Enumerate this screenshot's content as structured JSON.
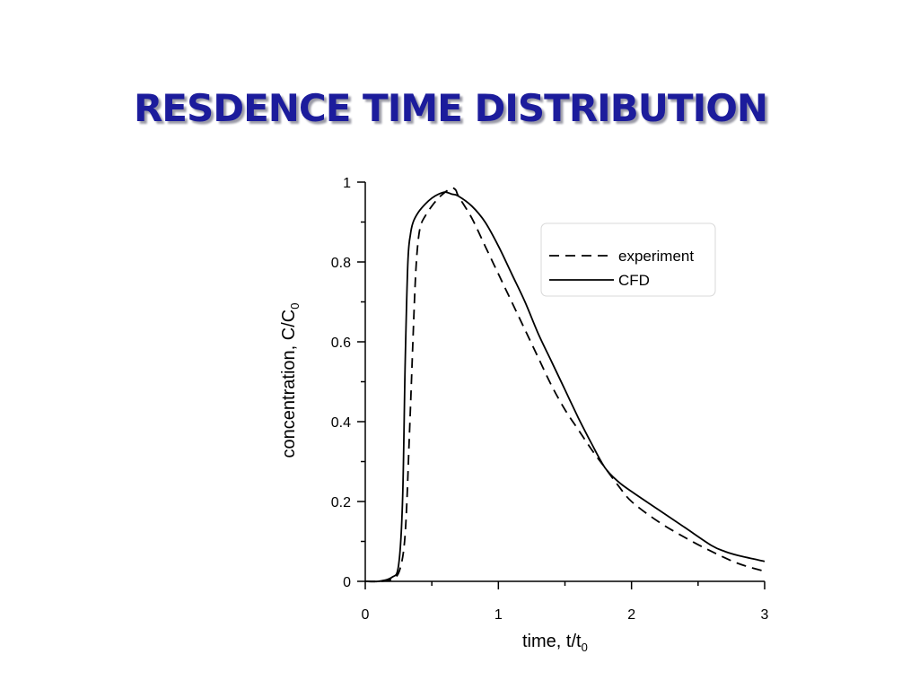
{
  "slide": {
    "title": "RESDENCE TIME DISTRIBUTION"
  },
  "chart_data": {
    "type": "line",
    "xlabel": "time, t/t",
    "xlabel_sub": "0",
    "ylabel": "concentration, C/C",
    "ylabel_sub": "0",
    "xlim": [
      0,
      3
    ],
    "ylim": [
      0,
      1
    ],
    "xticks": [
      0,
      1,
      2,
      3
    ],
    "xtick_labels": [
      "0",
      "1",
      "2",
      "3"
    ],
    "yticks": [
      0,
      0.2,
      0.4,
      0.6,
      0.8,
      1
    ],
    "ytick_labels": [
      "0",
      "0.2",
      "0.4",
      "0.6",
      "0.8",
      "1"
    ],
    "grid": false,
    "legend": {
      "position": "top-right"
    },
    "series": [
      {
        "name": "experiment",
        "style": "dashed",
        "color": "#000000",
        "x": [
          0,
          0.1,
          0.2,
          0.26,
          0.3,
          0.33,
          0.36,
          0.38,
          0.4,
          0.42,
          0.45,
          0.5,
          0.55,
          0.6,
          0.65,
          0.68,
          0.7,
          0.8,
          0.9,
          1.0,
          1.1,
          1.2,
          1.3,
          1.4,
          1.5,
          1.6,
          1.7,
          1.8,
          1.9,
          2.0,
          2.2,
          2.4,
          2.6,
          2.8,
          3.0
        ],
        "y": [
          0,
          0,
          0.005,
          0.03,
          0.12,
          0.35,
          0.62,
          0.78,
          0.86,
          0.895,
          0.915,
          0.94,
          0.96,
          0.975,
          0.985,
          0.98,
          0.965,
          0.91,
          0.84,
          0.77,
          0.7,
          0.63,
          0.56,
          0.49,
          0.43,
          0.38,
          0.33,
          0.285,
          0.24,
          0.2,
          0.15,
          0.11,
          0.075,
          0.045,
          0.025
        ]
      },
      {
        "name": "CFD",
        "style": "solid",
        "color": "#000000",
        "x": [
          0,
          0.1,
          0.2,
          0.25,
          0.28,
          0.3,
          0.32,
          0.34,
          0.36,
          0.4,
          0.45,
          0.5,
          0.55,
          0.6,
          0.65,
          0.7,
          0.8,
          0.9,
          1.0,
          1.1,
          1.2,
          1.3,
          1.4,
          1.5,
          1.6,
          1.7,
          1.8,
          1.9,
          2.0,
          2.2,
          2.4,
          2.6,
          2.7,
          2.8,
          3.0
        ],
        "y": [
          0,
          0,
          0.01,
          0.04,
          0.2,
          0.55,
          0.8,
          0.87,
          0.9,
          0.925,
          0.945,
          0.96,
          0.97,
          0.975,
          0.97,
          0.965,
          0.94,
          0.9,
          0.84,
          0.77,
          0.7,
          0.62,
          0.55,
          0.48,
          0.41,
          0.345,
          0.285,
          0.25,
          0.225,
          0.18,
          0.135,
          0.09,
          0.075,
          0.065,
          0.05
        ]
      }
    ]
  }
}
